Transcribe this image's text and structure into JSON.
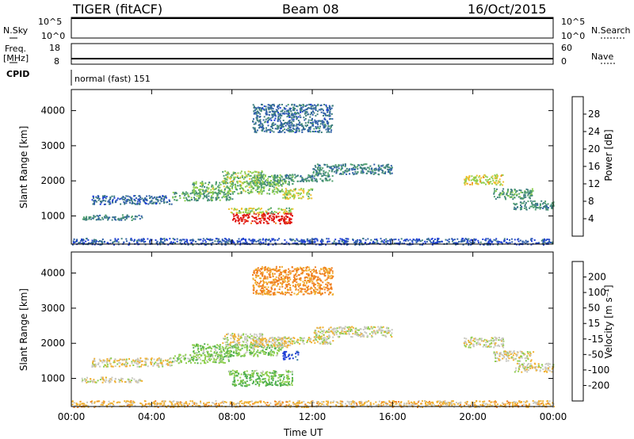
{
  "header": {
    "radar": "TIGER (fitACF)",
    "beam": "Beam 08",
    "date": "16/Oct/2015"
  },
  "panels": {
    "nsky": {
      "label": "N.Sky",
      "ticks": [
        "10^5",
        "10^0"
      ],
      "right_label": "N.Search",
      "right_ticks": [
        "10^5",
        "10^0"
      ]
    },
    "freq": {
      "label_top": "Freq.",
      "label_unit": "[MHz]",
      "ticks": [
        "18",
        "8"
      ],
      "right_label": "Nave",
      "right_ticks": [
        "60",
        "0"
      ]
    },
    "cpid": {
      "label": "CPID",
      "text": "normal (fast) 151"
    }
  },
  "colors": {
    "power": [
      "#1f3fd6",
      "#2f5fa8",
      "#3f7f7f",
      "#4f9f6f",
      "#8fcf4f",
      "#f0c030",
      "#f08a20",
      "#e03020",
      "#e00000"
    ],
    "velocity": [
      "#e00000",
      "#f04020",
      "#f08020",
      "#f0b030",
      "#c8c8c0",
      "#8fcf4f",
      "#4faf4f",
      "#3f7f9f",
      "#1f3fd6"
    ],
    "ground": "#7f7f7f"
  },
  "chart_data": [
    {
      "type": "heatmap",
      "name": "power",
      "ylabel": "Slant Range [km]",
      "yticks": [
        "1000",
        "2000",
        "3000",
        "4000"
      ],
      "ylim": [
        200,
        4600
      ],
      "xlim": [
        0,
        24
      ],
      "colorbar": {
        "label": "Power [dB]",
        "ticks": [
          "4",
          "8",
          "12",
          "16",
          "20",
          "24",
          "28"
        ]
      },
      "bands": [
        {
          "x": [
            0.5,
            1.0
          ],
          "y": [
            900,
            1000
          ],
          "v": 12
        },
        {
          "x": [
            1.0,
            3.5
          ],
          "y": [
            900,
            1050
          ],
          "v": 10
        },
        {
          "x": [
            1.0,
            5.0
          ],
          "y": [
            1350,
            1600
          ],
          "v": 8
        },
        {
          "x": [
            5.0,
            8.0
          ],
          "y": [
            1450,
            1700
          ],
          "v": 14
        },
        {
          "x": [
            6.0,
            10.5
          ],
          "y": [
            1650,
            2000
          ],
          "v": 16
        },
        {
          "x": [
            7.5,
            9.5
          ],
          "y": [
            1950,
            2300
          ],
          "v": 17
        },
        {
          "x": [
            8.0,
            11.0
          ],
          "y": [
            800,
            1100
          ],
          "v": 30
        },
        {
          "x": [
            7.8,
            11.0
          ],
          "y": [
            1100,
            1250
          ],
          "v": 19
        },
        {
          "x": [
            9.0,
            11.0
          ],
          "y": [
            1900,
            2200
          ],
          "v": 15
        },
        {
          "x": [
            10.5,
            12.0
          ],
          "y": [
            1500,
            1800
          ],
          "v": 19
        },
        {
          "x": [
            10.0,
            13.0
          ],
          "y": [
            2000,
            2200
          ],
          "v": 12
        },
        {
          "x": [
            12.0,
            16.0
          ],
          "y": [
            2200,
            2500
          ],
          "v": 11
        },
        {
          "x": [
            9.0,
            13.0
          ],
          "y": [
            3400,
            4200
          ],
          "v": 9
        },
        {
          "x": [
            19.5,
            21.5
          ],
          "y": [
            1900,
            2200
          ],
          "v": 20
        },
        {
          "x": [
            21.0,
            23.0
          ],
          "y": [
            1500,
            1800
          ],
          "v": 14
        },
        {
          "x": [
            22.0,
            24.0
          ],
          "y": [
            1200,
            1450
          ],
          "v": 12
        },
        {
          "x": [
            0.0,
            24.0
          ],
          "y": [
            200,
            380
          ],
          "v": 6
        }
      ]
    },
    {
      "type": "heatmap",
      "name": "velocity",
      "ylabel": "Slant Range [km]",
      "xlabel": "Time UT",
      "xticks": [
        "00:00",
        "04:00",
        "08:00",
        "12:00",
        "16:00",
        "20:00",
        "00:00"
      ],
      "yticks": [
        "1000",
        "2000",
        "3000",
        "4000"
      ],
      "ylim": [
        200,
        4600
      ],
      "xlim": [
        0,
        24
      ],
      "colorbar": {
        "label": "Velocity [m s⁻¹]",
        "ticks": [
          "200",
          "100",
          "50",
          "15",
          "-15",
          "-50",
          "-100",
          "-200"
        ]
      },
      "bands": [
        {
          "x": [
            0.5,
            3.5
          ],
          "y": [
            900,
            1050
          ],
          "v": 0
        },
        {
          "x": [
            1.0,
            5.0
          ],
          "y": [
            1350,
            1600
          ],
          "v": -5
        },
        {
          "x": [
            5.0,
            8.0
          ],
          "y": [
            1450,
            1700
          ],
          "v": 30
        },
        {
          "x": [
            6.0,
            10.5
          ],
          "y": [
            1650,
            2000
          ],
          "v": 40
        },
        {
          "x": [
            7.5,
            9.5
          ],
          "y": [
            1950,
            2300
          ],
          "v": 0
        },
        {
          "x": [
            8.0,
            11.0
          ],
          "y": [
            800,
            1100
          ],
          "v": 60
        },
        {
          "x": [
            7.8,
            11.0
          ],
          "y": [
            1100,
            1250
          ],
          "v": 40
        },
        {
          "x": [
            9.0,
            11.0
          ],
          "y": [
            1900,
            2200
          ],
          "v": -20
        },
        {
          "x": [
            10.5,
            11.3
          ],
          "y": [
            1550,
            1800
          ],
          "v": 220
        },
        {
          "x": [
            10.0,
            13.0
          ],
          "y": [
            2000,
            2200
          ],
          "v": 0
        },
        {
          "x": [
            12.0,
            16.0
          ],
          "y": [
            2200,
            2500
          ],
          "v": 0
        },
        {
          "x": [
            9.0,
            13.0
          ],
          "y": [
            3400,
            4200
          ],
          "v": -60
        },
        {
          "x": [
            19.5,
            21.5
          ],
          "y": [
            1900,
            2200
          ],
          "v": 0
        },
        {
          "x": [
            21.0,
            23.0
          ],
          "y": [
            1500,
            1800
          ],
          "v": 0
        },
        {
          "x": [
            22.0,
            24.0
          ],
          "y": [
            1200,
            1450
          ],
          "v": -5
        },
        {
          "x": [
            0.0,
            24.0
          ],
          "y": [
            200,
            380
          ],
          "v": -30
        }
      ]
    }
  ]
}
